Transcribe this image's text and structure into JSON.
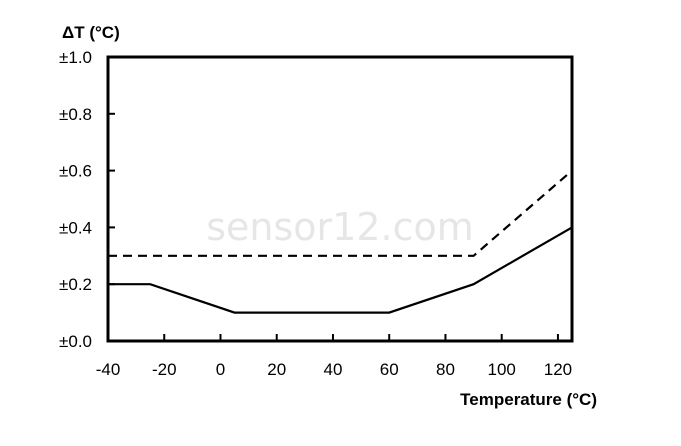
{
  "chart_data": {
    "type": "line",
    "ylabel": "ΔT (°C)",
    "xlabel": "Temperature (°C)",
    "xlim": [
      -40,
      125
    ],
    "ylim": [
      0,
      1.0
    ],
    "x_ticks": [
      -40,
      -20,
      0,
      20,
      40,
      60,
      80,
      100,
      120
    ],
    "x_tick_labels": [
      "-40",
      "-20",
      "0",
      "20",
      "40",
      "60",
      "80",
      "100",
      "120"
    ],
    "y_ticks": [
      0,
      0.2,
      0.4,
      0.6,
      0.8,
      1.0
    ],
    "y_tick_labels": [
      "±0.0",
      "±0.2",
      "±0.4",
      "±0.6",
      "±0.8",
      "±1.0"
    ],
    "grid": false,
    "watermark": "sensor12.com",
    "series": [
      {
        "style": "solid",
        "color": "#000000",
        "points": [
          [
            -40,
            0.2
          ],
          [
            -25,
            0.2
          ],
          [
            5,
            0.1
          ],
          [
            60,
            0.1
          ],
          [
            90,
            0.2
          ],
          [
            125,
            0.4
          ]
        ]
      },
      {
        "style": "dashed",
        "color": "#000000",
        "points": [
          [
            -40,
            0.3
          ],
          [
            90,
            0.3
          ],
          [
            125,
            0.6
          ]
        ]
      }
    ]
  }
}
